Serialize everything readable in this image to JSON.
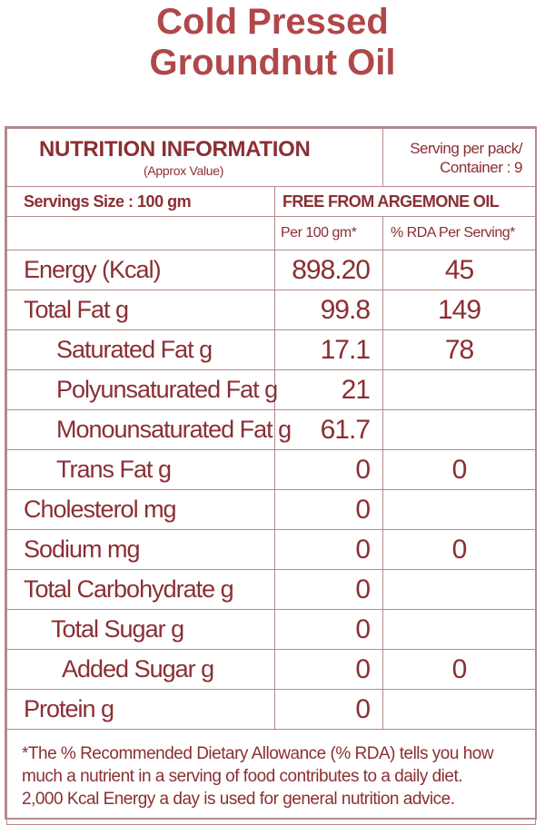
{
  "title": {
    "line1": "Cold Pressed",
    "line2": "Groundnut Oil"
  },
  "table": {
    "heading": "NUTRITION INFORMATION",
    "subheading": "(Approx Value)",
    "serving_pack_line1": "Serving per pack/",
    "serving_pack_line2": "Container : 9",
    "serving_size": "Servings Size : 100 gm",
    "free_from": "FREE FROM ARGEMONE OIL",
    "col_per": "Per 100 gm*",
    "col_rda": "% RDA Per Serving*",
    "rows": [
      {
        "label": "Energy (Kcal)",
        "per": "898.20",
        "rda": "45"
      },
      {
        "label": "Total Fat g",
        "per": "99.8",
        "rda": "149"
      },
      {
        "label": "Saturated Fat g",
        "per": "17.1",
        "rda": "78"
      },
      {
        "label": "Polyunsaturated Fat g",
        "per": "21",
        "rda": ""
      },
      {
        "label": "Monounsaturated Fat g",
        "per": "61.7",
        "rda": ""
      },
      {
        "label": "Trans Fat g",
        "per": "0",
        "rda": "0"
      },
      {
        "label": "Cholesterol mg",
        "per": "0",
        "rda": ""
      },
      {
        "label": "Sodium mg",
        "per": "0",
        "rda": "0"
      },
      {
        "label": "Total Carbohydrate g",
        "per": "0",
        "rda": ""
      },
      {
        "label": "Total Sugar g",
        "per": "0",
        "rda": ""
      },
      {
        "label": "Added Sugar g",
        "per": "0",
        "rda": "0"
      },
      {
        "label": "Protein g",
        "per": "0",
        "rda": ""
      }
    ],
    "footnote_line1": "*The % Recommended Dietary Allowance (% RDA) tells you how",
    "footnote_line2": "much a nutrient in a serving of food contributes to a daily diet.",
    "footnote_line3": "2,000 Kcal Energy a day is used for general nutrition advice."
  },
  "colors": {
    "title": "#b0474a",
    "text": "#8b2f33",
    "border": "#b58a8c"
  }
}
